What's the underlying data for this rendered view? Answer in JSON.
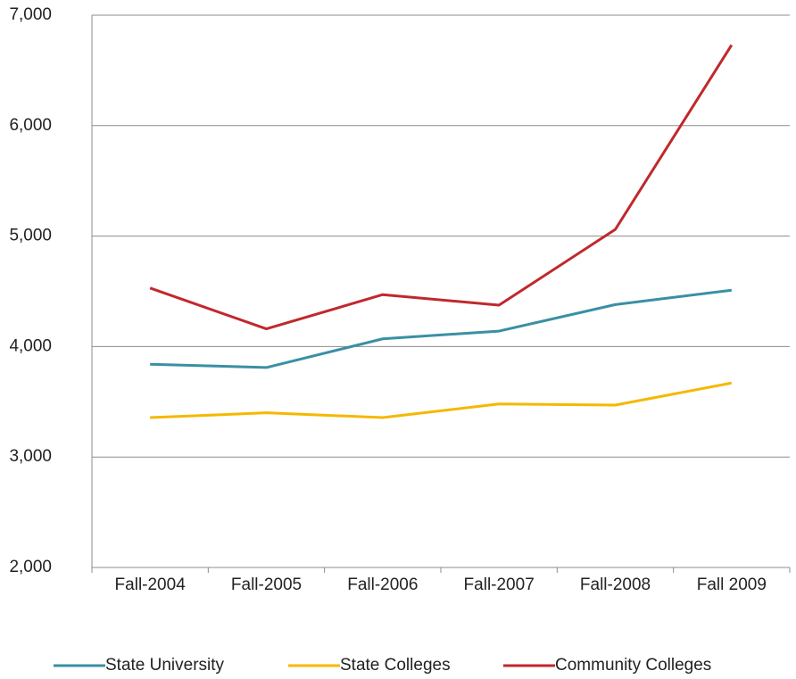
{
  "chart_data": {
    "type": "line",
    "categories": [
      "Fall-2004",
      "Fall-2005",
      "Fall-2006",
      "Fall-2007",
      "Fall-2008",
      "Fall 2009"
    ],
    "series": [
      {
        "name": "State University",
        "color": "#3a8fa5",
        "values": [
          3840,
          3810,
          4070,
          4140,
          4380,
          4510
        ]
      },
      {
        "name": "State Colleges",
        "color": "#f5b800",
        "values": [
          3357,
          3400,
          3357,
          3480,
          3470,
          3670
        ]
      },
      {
        "name": "Community Colleges",
        "color": "#c0282d",
        "values": [
          4530,
          4160,
          4470,
          4375,
          5060,
          6730
        ]
      }
    ],
    "ylim": [
      2000,
      7000
    ],
    "yticks": [
      {
        "value": 2000,
        "label": "2,000"
      },
      {
        "value": 3000,
        "label": "3,000"
      },
      {
        "value": 4000,
        "label": "4,000"
      },
      {
        "value": 5000,
        "label": "5,000"
      },
      {
        "value": 6000,
        "label": "6,000"
      },
      {
        "value": 7000,
        "label": "7,000"
      }
    ],
    "grid": true,
    "legend": "bottom"
  }
}
